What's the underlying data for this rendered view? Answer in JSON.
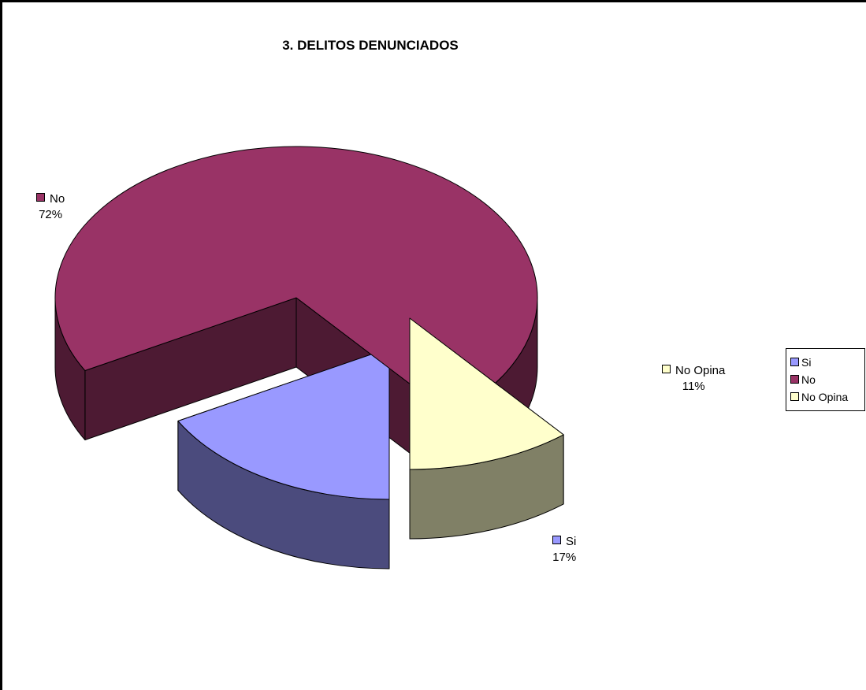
{
  "chart_data": {
    "type": "pie",
    "title": "3. DELITOS DENUNCIADOS",
    "slices": [
      {
        "name": "Si",
        "percent": 17,
        "label": "17%",
        "color": "#9999ff",
        "side_color": "#4b4b7d"
      },
      {
        "name": "No",
        "percent": 72,
        "label": "72%",
        "color": "#993366",
        "side_color": "#4d1a33"
      },
      {
        "name": "No Opina",
        "percent": 11,
        "label": "11%",
        "color": "#ffffcc",
        "side_color": "#808066"
      }
    ],
    "legend": [
      "Si",
      "No",
      "No Opina"
    ],
    "legend_position": "right",
    "exploded": true,
    "three_d": true
  }
}
